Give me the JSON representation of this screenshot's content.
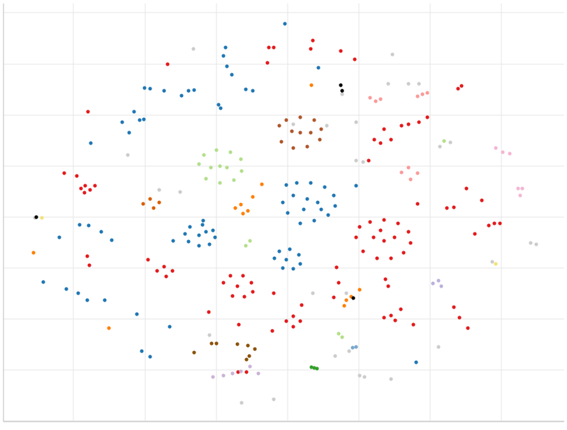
{
  "chart_data": {
    "type": "scatter",
    "xlim": [
      5,
      808
    ],
    "ylim": [
      12,
      611
    ],
    "xticks": [
      105,
      208,
      310,
      412,
      514,
      616,
      718
    ],
    "yticks": [
      598,
      524,
      451,
      378,
      305,
      232,
      159,
      86,
      13
    ],
    "grid": true,
    "series": [
      {
        "color": "#cccccc",
        "x": [
          277,
          562,
          556,
          585,
          600,
          490,
          420,
          468,
          630,
          645,
          510,
          520,
          183,
          228,
          258,
          50,
          760,
          768,
          705,
          448,
          496,
          628,
          515,
          522,
          560,
          480,
          500,
          392,
          346,
          300,
          510
        ],
        "values": [
          546,
          538,
          496,
          496,
          496,
          481,
          438,
          436,
          406,
          412,
          386,
          384,
          394,
          344,
          341,
          304,
          268,
          266,
          241,
          196,
          196,
          119,
          78,
          76,
          73,
          106,
          113,
          44,
          39,
          136,
          441
        ]
      },
      {
        "color": "#1f77b4",
        "x": [
          410,
          425,
          445,
          465,
          478,
          480,
          470,
          450,
          430,
          412,
          405,
          420,
          440,
          455,
          460,
          435,
          265,
          272,
          290,
          305,
          308,
          300,
          285,
          270,
          285,
          295,
          393,
          400,
          415,
          428,
          430,
          420,
          405,
          410,
          200,
          206,
          323,
          320,
          325,
          332,
          408,
          207,
          215,
          235,
          260,
          270,
          278,
          313,
          316,
          352,
          362,
          192,
          175,
          185,
          130,
          114,
          127,
          145,
          160,
          62,
          95,
          112,
          125,
          150,
          196,
          203,
          215,
          243,
          248,
          291,
          510,
          456,
          596,
          85
        ],
        "values": [
          351,
          354,
          354,
          348,
          336,
          321,
          308,
          300,
          296,
          311,
          326,
          336,
          331,
          326,
          316,
          316,
          281,
          291,
          294,
          286,
          276,
          266,
          264,
          270,
          279,
          284,
          246,
          256,
          259,
          251,
          238,
          231,
          232,
          244,
          444,
          445,
          548,
          536,
          521,
          509,
          582,
          490,
          489,
          486,
          479,
          486,
          487,
          466,
          461,
          488,
          486,
          456,
          441,
          426,
          411,
          294,
          293,
          284,
          272,
          212,
          202,
          196,
          186,
          186,
          166,
          113,
          105,
          148,
          271,
          300,
          350,
          519,
          97,
          276
        ]
      },
      {
        "color": "#e31a1c",
        "x": [
          510,
          515,
          530,
          550,
          570,
          585,
          588,
          578,
          560,
          540,
          520,
          535,
          550,
          565,
          545,
          320,
          330,
          348,
          360,
          362,
          350,
          333,
          340,
          225,
          235,
          247,
          238,
          410,
          420,
          430,
          420,
          116,
          122,
          129,
          121,
          550,
          560,
          566,
          640,
          650,
          126,
          92,
          110,
          136,
          240,
          385,
          392,
          383,
          448,
          445,
          488,
          508,
          536,
          545,
          550,
          560,
          575,
          585,
          600,
          612,
          528,
          598,
          690,
          668,
          700,
          708,
          716,
          680,
          656,
          661,
          125,
          128,
          212,
          299,
          342,
          390,
          392,
          485,
          482,
          478,
          552,
          556,
          574,
          592,
          650,
          658,
          670,
          432,
          341,
          353
        ],
        "values": [
          276,
          291,
          298,
          301,
          296,
          284,
          268,
          254,
          246,
          246,
          256,
          276,
          271,
          276,
          286,
          211,
          221,
          221,
          211,
          198,
          191,
          192,
          206,
          228,
          234,
          228,
          220,
          156,
          163,
          156,
          148,
          346,
          350,
          344,
          340,
          161,
          164,
          157,
          318,
          319,
          456,
          368,
          364,
          350,
          524,
          548,
          548,
          526,
          558,
          546,
          543,
          531,
          416,
          411,
          431,
          416,
          436,
          438,
          441,
          448,
          386,
          324,
          329,
          346,
          293,
          296,
          296,
          281,
          489,
          493,
          249,
          236,
          244,
          169,
          151,
          142,
          196,
          211,
          233,
          190,
          216,
          206,
          173,
          151,
          176,
          161,
          146,
          179,
          83,
          83
        ]
      },
      {
        "color": "#b0562a",
        "x": [
          400,
          410,
          430,
          450,
          460,
          458,
          440,
          420,
          403,
          430,
          445,
          418
        ],
        "values": [
          436,
          444,
          448,
          444,
          431,
          416,
          406,
          404,
          413,
          426,
          426,
          428
        ]
      },
      {
        "color": "#8c510a",
        "x": [
          303,
          310,
          340,
          355,
          365,
          357,
          353,
          278
        ],
        "values": [
          124,
          124,
          123,
          121,
          116,
          106,
          101,
          111
        ]
      },
      {
        "color": "#b2df8a",
        "x": [
          285,
          292,
          310,
          330,
          345,
          346,
          335,
          315,
          295,
          315,
          325,
          302,
          358,
          352,
          636,
          485,
          490
        ],
        "values": [
          381,
          394,
          401,
          398,
          388,
          371,
          358,
          354,
          360,
          378,
          376,
          376,
          271,
          264,
          414,
          138,
          133
        ]
      },
      {
        "color": "#d95f02",
        "x": [
          205,
          215,
          228,
          220
        ],
        "values": [
          324,
          331,
          326,
          318
        ]
      },
      {
        "color": "#ff7f00",
        "x": [
          337,
          345,
          355,
          348,
          362,
          375,
          446,
          48,
          156,
          496,
          493,
          515,
          503
        ],
        "values": [
          318,
          323,
          314,
          310,
          334,
          352,
          494,
          254,
          146,
          186,
          178,
          201,
          191
        ]
      },
      {
        "color": "#fb9a99",
        "x": [
          575,
          585,
          598,
          588,
          538,
          530,
          545,
          605,
          598,
          612
        ],
        "values": [
          369,
          376,
          368,
          359,
          471,
          476,
          474,
          481,
          478,
          483
        ]
      },
      {
        "color": "#f4b6d2",
        "x": [
          710,
          720,
          730,
          742,
          745,
          748
        ],
        "values": [
          404,
          398,
          396,
          346,
          336,
          346
        ]
      },
      {
        "color": "#bcb0dc",
        "x": [
          620,
          628,
          632
        ],
        "values": [
          210,
          214,
          206
        ]
      },
      {
        "color": "#cab2d6",
        "x": [
          305,
          320,
          333,
          345,
          358,
          370
        ],
        "values": [
          76,
          78,
          81,
          84,
          91,
          81
        ]
      },
      {
        "color": "#33a02c",
        "x": [
          446,
          450,
          454
        ],
        "values": [
          90,
          89,
          88
        ]
      },
      {
        "color": "#7ba7cc",
        "x": [
          505,
          510
        ],
        "values": [
          118,
          119
        ]
      },
      {
        "color": "#000000",
        "x": [
          488,
          490,
          506,
          52
        ],
        "values": [
          494,
          486,
          189,
          305
        ]
      },
      {
        "color": "#f2e27a",
        "x": [
          710,
          60
        ],
        "values": [
          238,
          304
        ]
      }
    ]
  }
}
